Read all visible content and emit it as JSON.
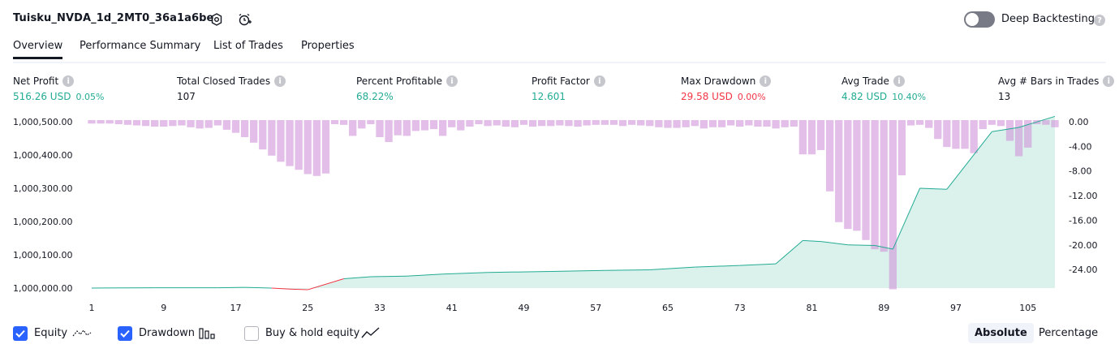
{
  "header": {
    "title": "Tuisku_NVDA_1d_2MT0_36a1a6be",
    "deep_backtesting_label": "Deep Backtesting",
    "deep_backtesting_enabled": false
  },
  "tabs": [
    "Overview",
    "Performance Summary",
    "List of Trades",
    "Properties"
  ],
  "metrics": [
    {
      "label": "Net Profit",
      "value": "516.26 USD",
      "sub": "0.05%",
      "tone": "pos"
    },
    {
      "label": "Total Closed Trades",
      "value": "107",
      "sub": "",
      "tone": "neutral"
    },
    {
      "label": "Percent Profitable",
      "value": "68.22%",
      "sub": "",
      "tone": "pos"
    },
    {
      "label": "Profit Factor",
      "value": "12.601",
      "sub": "",
      "tone": "pos"
    },
    {
      "label": "Max Drawdown",
      "value": "29.58 USD",
      "sub": "0.00%",
      "tone": "neg"
    },
    {
      "label": "Avg Trade",
      "value": "4.82 USD",
      "sub": "10.40%",
      "tone": "pos"
    },
    {
      "label": "Avg # Bars in Trades",
      "value": "13",
      "sub": "",
      "tone": "neutral"
    }
  ],
  "chart_data": {
    "type": "area",
    "x_ticks": [
      "1",
      "9",
      "17",
      "25",
      "33",
      "41",
      "49",
      "57",
      "65",
      "73",
      "81",
      "89",
      "97",
      "105"
    ],
    "y_left_ticks": [
      "1,000,500.00",
      "1,000,400.00",
      "1,000,300.00",
      "1,000,200.00",
      "1,000,100.00",
      "1,000,000.00"
    ],
    "y_left_range": [
      1000000,
      1000500
    ],
    "y_right_ticks": [
      "0.00",
      "-4.00",
      "-8.00",
      "-12.00",
      "-16.00",
      "-20.00",
      "-24.00"
    ],
    "y_right_range": [
      0,
      -27
    ],
    "x_range": [
      1,
      108
    ],
    "colors": {
      "equity_pos": "#22ab94",
      "equity_neg": "#f23645",
      "area": "#cfede5",
      "drawdown": "#ce93d8"
    },
    "equity": [
      [
        1,
        1000000
      ],
      [
        8,
        1000001
      ],
      [
        15,
        1000001
      ],
      [
        18,
        1000002
      ],
      [
        21,
        1000000
      ],
      [
        23,
        999997
      ],
      [
        25,
        999995
      ],
      [
        29,
        1000028
      ],
      [
        32,
        1000034
      ],
      [
        36,
        1000036
      ],
      [
        40,
        1000042
      ],
      [
        45,
        1000047
      ],
      [
        52,
        1000050
      ],
      [
        58,
        1000053
      ],
      [
        63,
        1000055
      ],
      [
        68,
        1000063
      ],
      [
        73,
        1000068
      ],
      [
        77,
        1000073
      ],
      [
        80,
        1000143
      ],
      [
        82,
        1000140
      ],
      [
        85,
        1000130
      ],
      [
        88,
        1000128
      ],
      [
        90,
        1000117
      ],
      [
        93,
        1000300
      ],
      [
        96,
        1000297
      ],
      [
        101,
        1000470
      ],
      [
        104,
        1000483
      ],
      [
        108,
        1000516
      ]
    ],
    "drawdown": [
      -0.3,
      -0.3,
      -0.3,
      -0.4,
      -0.5,
      -0.6,
      -0.7,
      -0.8,
      -0.8,
      -0.7,
      -0.6,
      -0.9,
      -1.1,
      -1.0,
      -0.6,
      -1.3,
      -1.8,
      -2.5,
      -3.4,
      -4.5,
      -5.5,
      -6.5,
      -7.2,
      -7.8,
      -8.5,
      -8.8,
      -8.4,
      -0.4,
      -0.5,
      -2.3,
      -1.1,
      -0.4,
      -2.5,
      -3.3,
      -2.2,
      -2.3,
      -1.5,
      -1.4,
      -1.2,
      -2.3,
      -0.9,
      -1.4,
      -0.8,
      -0.4,
      -0.7,
      -0.6,
      -0.8,
      -0.9,
      -0.5,
      -0.8,
      -0.7,
      -0.7,
      -0.6,
      -0.7,
      -0.8,
      -0.6,
      -0.5,
      -0.5,
      -0.5,
      -0.7,
      -0.5,
      -0.6,
      -0.7,
      -0.9,
      -1.0,
      -1.0,
      -0.9,
      -0.7,
      -1.1,
      -0.9,
      -0.9,
      -0.6,
      -0.8,
      -0.6,
      -0.8,
      -0.8,
      -1.1,
      -0.9,
      -0.8,
      -5.3,
      -5.3,
      -4.6,
      -11.3,
      -16.3,
      -17.4,
      -17.7,
      -19.2,
      -20.7,
      -21.1,
      -27.2,
      -8.7,
      -0.6,
      -0.5,
      -1.0,
      -2.8,
      -4.1,
      -4.4,
      -4.4,
      -5.1,
      -1.2,
      -0.5,
      -0.7,
      -3.1,
      -5.6,
      -4.2,
      -0.4,
      -0.5,
      -0.9
    ]
  },
  "legend": {
    "equity_label": "Equity",
    "equity_checked": true,
    "drawdown_label": "Drawdown",
    "drawdown_checked": true,
    "buyhold_label": "Buy & hold equity",
    "buyhold_checked": false
  },
  "scale": {
    "absolute_label": "Absolute",
    "percentage_label": "Percentage",
    "selected": "Absolute"
  }
}
